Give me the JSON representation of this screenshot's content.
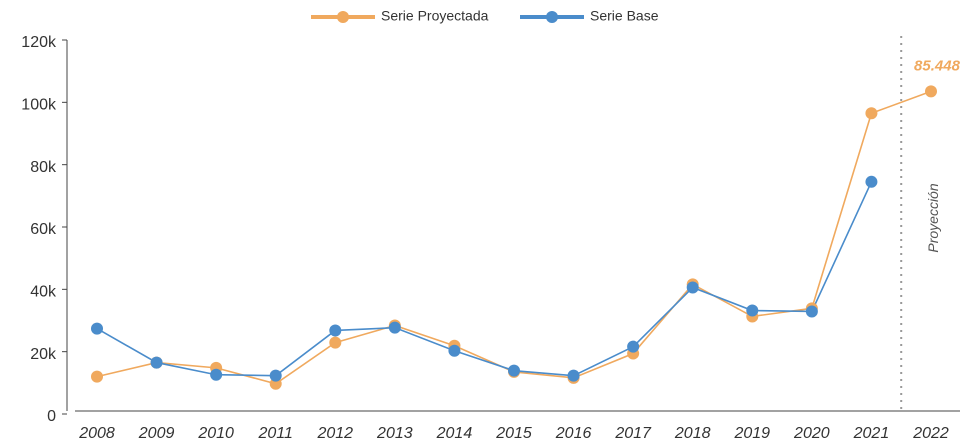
{
  "chart_data": {
    "type": "line",
    "categories": [
      "2008",
      "2009",
      "2010",
      "2011",
      "2012",
      "2013",
      "2014",
      "2015",
      "2016",
      "2017",
      "2018",
      "2019",
      "2020",
      "2021",
      "2022"
    ],
    "series": [
      {
        "name": "Serie Proyectada",
        "color": "#f0a95e",
        "values": [
          12000,
          16500,
          14800,
          9700,
          22900,
          28400,
          21900,
          13500,
          11600,
          19400,
          41600,
          31300,
          33900,
          96500,
          103500
        ]
      },
      {
        "name": "Serie Base",
        "color": "#4a8ccb",
        "values": [
          27400,
          16500,
          12600,
          12300,
          26800,
          27700,
          20300,
          13900,
          12300,
          21600,
          40600,
          33200,
          32900,
          74500,
          null
        ]
      }
    ],
    "ylim": [
      0,
      120000
    ],
    "yticks": [
      0,
      {
        "value": 20000,
        "label": "20k"
      },
      {
        "value": 40000,
        "label": "40k"
      },
      {
        "value": 60000,
        "label": "60k"
      },
      {
        "value": 80000,
        "label": "80k"
      },
      {
        "value": 100000,
        "label": "100k"
      },
      {
        "value": 120000,
        "label": "120k"
      }
    ],
    "annotations": [
      "85.448",
      "Proyección"
    ],
    "legend": "top"
  }
}
